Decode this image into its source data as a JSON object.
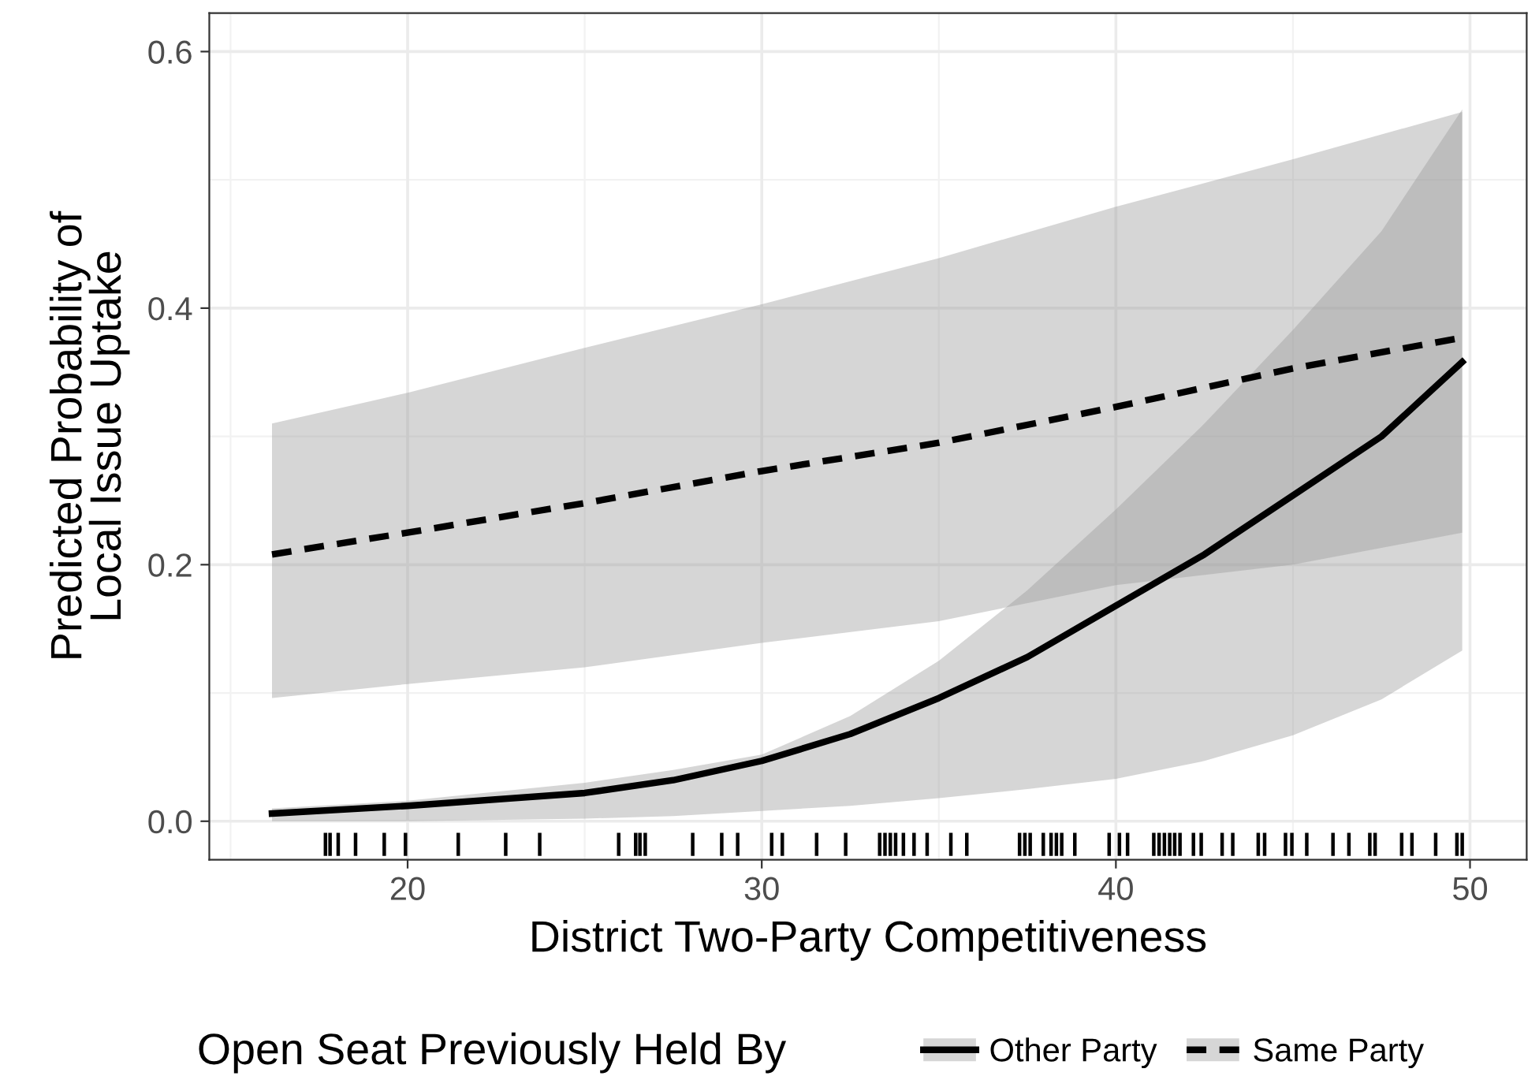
{
  "chart_data": {
    "type": "line",
    "xlabel": "District Two-Party Competitiveness",
    "ylabel": "Predicted Probability of\nLocal Issue Uptake",
    "legend_title": "Open Seat Previously Held By",
    "xlim": [
      14.4,
      51.6
    ],
    "ylim": [
      -0.03,
      0.63
    ],
    "xticks": [
      20,
      30,
      40,
      50
    ],
    "yticks": [
      {
        "value": 0,
        "label": "0.0"
      },
      {
        "value": 0.2,
        "label": "0.2"
      },
      {
        "value": 0.4,
        "label": "0.4"
      },
      {
        "value": 0.6,
        "label": "0.6"
      }
    ],
    "grid": true,
    "legend": "bottom",
    "series": [
      {
        "name": "Other Party",
        "color": "#000000",
        "line_style": "solid",
        "x": [
          16.17,
          20,
          25,
          27.5,
          30,
          32.5,
          35,
          37.5,
          40,
          42.5,
          45,
          47.5,
          49.78
        ],
        "values": [
          0.006,
          0.012,
          0.022,
          0.032,
          0.047,
          0.068,
          0.096,
          0.128,
          0.168,
          0.208,
          0.254,
          0.3,
          0.358
        ],
        "lower": [
          0.0,
          0.0,
          0.002,
          0.004,
          0.008,
          0.012,
          0.018,
          0.025,
          0.033,
          0.047,
          0.067,
          0.095,
          0.133
        ],
        "upper": [
          0.01,
          0.016,
          0.03,
          0.04,
          0.052,
          0.082,
          0.125,
          0.18,
          0.243,
          0.31,
          0.383,
          0.46,
          0.555
        ]
      },
      {
        "name": "Same Party",
        "color": "#000000",
        "line_style": "dashed",
        "x": [
          16.17,
          20,
          25,
          30,
          35,
          40,
          45,
          49.78
        ],
        "values": [
          0.208,
          0.225,
          0.248,
          0.273,
          0.295,
          0.323,
          0.353,
          0.377
        ],
        "lower": [
          0.096,
          0.107,
          0.12,
          0.139,
          0.156,
          0.184,
          0.2,
          0.225
        ],
        "upper": [
          0.31,
          0.334,
          0.369,
          0.403,
          0.439,
          0.479,
          0.516,
          0.553
        ]
      },
      {
        "type": "bar",
        "color": "#000000",
        "base": [
          -0.027,
          -0.027,
          -0.027,
          -0.027,
          -0.027,
          -0.027,
          -0.027,
          -0.027,
          -0.027,
          -0.027,
          -0.027,
          -0.027,
          -0.027,
          -0.027,
          -0.027,
          -0.027,
          -0.027,
          -0.027,
          -0.027,
          -0.027,
          -0.027,
          -0.027,
          -0.027,
          -0.027,
          -0.027,
          -0.027,
          -0.027,
          -0.027,
          -0.027,
          -0.027,
          -0.027,
          -0.027,
          -0.027,
          -0.027,
          -0.027,
          -0.027,
          -0.027,
          -0.027,
          -0.027,
          -0.027,
          -0.027,
          -0.027,
          -0.027,
          -0.027,
          -0.027,
          -0.027,
          -0.027,
          -0.027,
          -0.027,
          -0.027,
          -0.027,
          -0.027,
          -0.027,
          -0.027,
          -0.027,
          -0.027,
          -0.027,
          -0.027,
          -0.027,
          -0.027,
          -0.027,
          -0.027,
          -0.027,
          -0.027
        ],
        "x": [
          17.68,
          17.81,
          18.04,
          18.53,
          19.34,
          19.94,
          21.43,
          22.77,
          23.73,
          25.96,
          26.44,
          26.56,
          26.71,
          28.05,
          28.87,
          29.32,
          30.28,
          30.58,
          31.55,
          32.37,
          33.33,
          33.48,
          33.63,
          33.78,
          34.0,
          34.3,
          34.67,
          35.34,
          35.79,
          37.28,
          37.43,
          37.58,
          37.95,
          38.17,
          38.32,
          38.47,
          38.84,
          39.81,
          40.1,
          40.33,
          41.07,
          41.22,
          41.37,
          41.52,
          41.66,
          41.81,
          42.19,
          42.41,
          43.0,
          43.3,
          44.02,
          44.2,
          44.79,
          44.97,
          45.39,
          46.13,
          46.58,
          47.17,
          47.32,
          48.07,
          48.36,
          49.03,
          49.63,
          49.78
        ],
        "values": [
          0.018,
          0.018,
          0.018,
          0.018,
          0.018,
          0.018,
          0.018,
          0.018,
          0.018,
          0.018,
          0.018,
          0.018,
          0.018,
          0.018,
          0.018,
          0.018,
          0.018,
          0.018,
          0.018,
          0.018,
          0.018,
          0.018,
          0.018,
          0.018,
          0.018,
          0.018,
          0.018,
          0.018,
          0.018,
          0.018,
          0.018,
          0.018,
          0.018,
          0.018,
          0.018,
          0.018,
          0.018,
          0.018,
          0.018,
          0.018,
          0.018,
          0.018,
          0.018,
          0.018,
          0.018,
          0.018,
          0.018,
          0.018,
          0.018,
          0.018,
          0.018,
          0.018,
          0.018,
          0.018,
          0.018,
          0.018,
          0.018,
          0.018,
          0.018,
          0.018,
          0.018,
          0.018,
          0.018,
          0.018
        ]
      }
    ]
  }
}
